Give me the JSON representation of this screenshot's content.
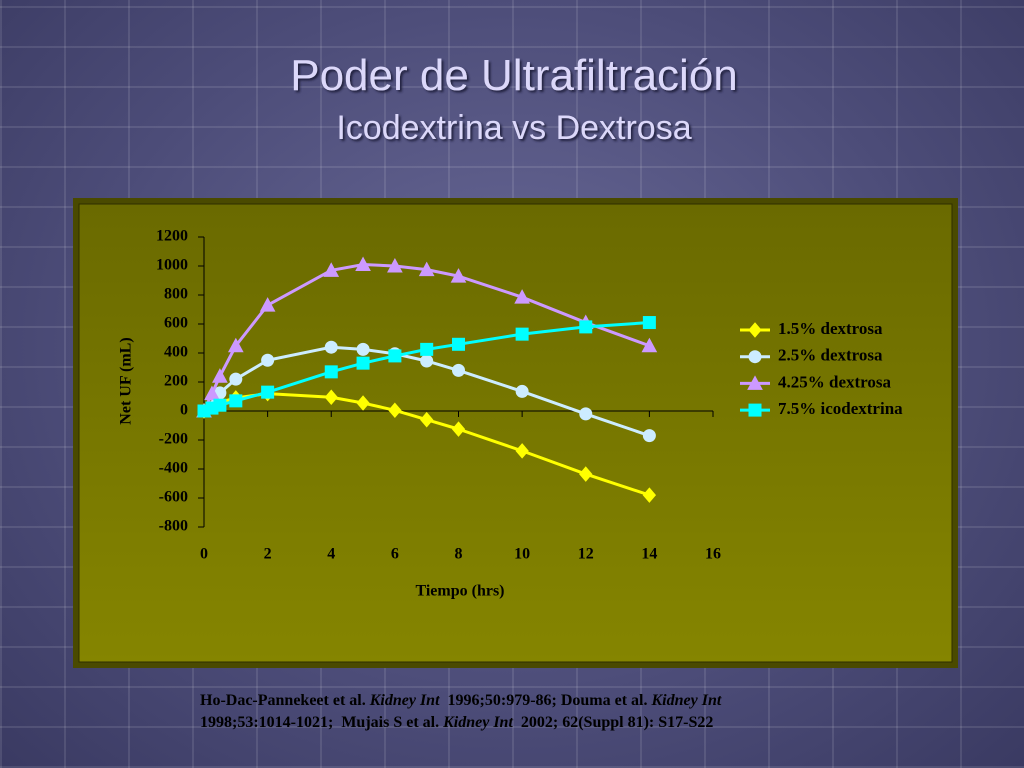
{
  "chart_data": {
    "type": "line",
    "title": "Poder de Ultrafiltración",
    "subtitle": "Icodextrina vs Dextrosa",
    "x_label": "Tiempo (hrs)",
    "y_label": "Net UF (mL)",
    "xlim": [
      0,
      16
    ],
    "xticks": [
      0,
      2,
      4,
      6,
      8,
      10,
      12,
      14,
      16
    ],
    "ylim": [
      -800,
      1200
    ],
    "yticks": [
      -800,
      -600,
      -400,
      -200,
      0,
      200,
      400,
      600,
      800,
      1000,
      1200
    ],
    "legend": "right",
    "series": [
      {
        "name": "1.5%  dextrosa",
        "color": "#ffff00",
        "marker": "diamond",
        "x": [
          0,
          0.5,
          1,
          2,
          4,
          5,
          6,
          7,
          8,
          10,
          12,
          14
        ],
        "values": [
          0,
          60,
          90,
          120,
          95,
          55,
          5,
          -60,
          -125,
          -275,
          -435,
          -580
        ]
      },
      {
        "name": "2.5%  dextrosa",
        "color": "#ccecff",
        "marker": "circle",
        "x": [
          0,
          0.5,
          1,
          2,
          4,
          5,
          6,
          7,
          8,
          10,
          12,
          14
        ],
        "values": [
          0,
          125,
          220,
          350,
          440,
          425,
          395,
          345,
          280,
          135,
          -20,
          -170
        ]
      },
      {
        "name": "4.25%  dextrosa",
        "color": "#cc99ff",
        "marker": "triangle",
        "x": [
          0,
          0.25,
          0.5,
          1,
          2,
          4,
          5,
          6,
          7,
          8,
          10,
          12,
          14
        ],
        "values": [
          0,
          120,
          240,
          450,
          730,
          970,
          1010,
          1000,
          975,
          930,
          785,
          610,
          450
        ]
      },
      {
        "name": "7.5%  icodextrina",
        "color": "#00ffff",
        "marker": "square",
        "x": [
          0,
          0.25,
          0.5,
          1,
          2,
          4,
          5,
          6,
          7,
          8,
          10,
          12,
          14
        ],
        "values": [
          0,
          20,
          40,
          70,
          130,
          270,
          330,
          380,
          425,
          460,
          530,
          580,
          610
        ]
      }
    ],
    "citation": [
      [
        {
          "text": "Ho-Dac-Pannekeet et al. ",
          "italic": false
        },
        {
          "text": "Kidney Int",
          "italic": true
        },
        {
          "text": "  1996;50:979-86; Douma et al. ",
          "italic": false
        },
        {
          "text": "Kidney Int",
          "italic": true
        }
      ],
      [
        {
          "text": "1998;53:1014-1021;  Mujais S et al. ",
          "italic": false
        },
        {
          "text": "Kidney Int",
          "italic": true
        },
        {
          "text": "  2002; 62(Suppl 81): S17-S22",
          "italic": false
        }
      ]
    ]
  }
}
